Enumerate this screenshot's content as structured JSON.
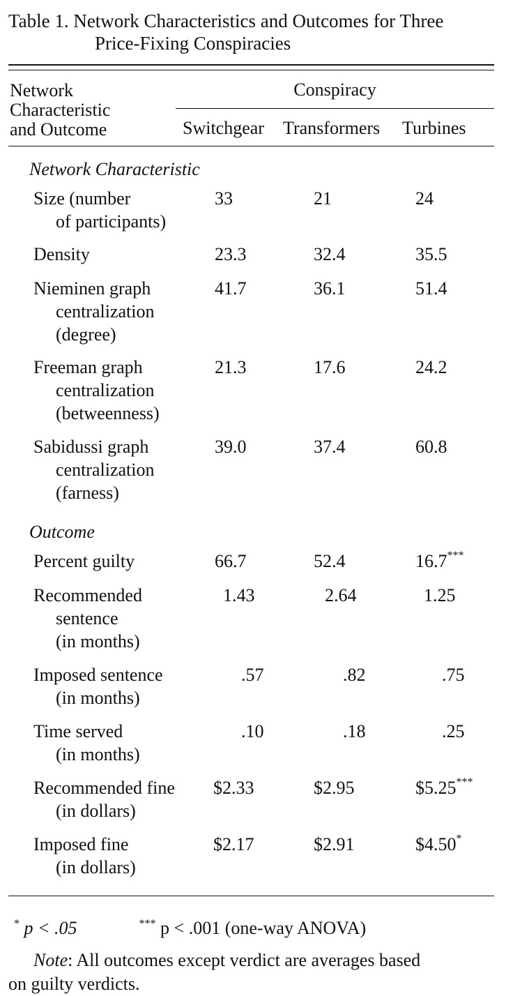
{
  "caption": {
    "line1": "Table 1. Network Characteristics and Outcomes for Three",
    "line2": "Price-Fixing Conspiracies"
  },
  "header": {
    "row_label": [
      "Network",
      "Characteristic",
      "and Outcome"
    ],
    "spanner": "Conspiracy",
    "columns": [
      "Switchgear",
      "Transformers",
      "Turbines"
    ]
  },
  "sections": [
    {
      "title": "Network Characteristic",
      "rows": [
        {
          "label": [
            "Size (number",
            "of participants)"
          ],
          "values": [
            "33",
            "21",
            "24"
          ],
          "marks": [
            "",
            "",
            ""
          ]
        },
        {
          "label": [
            "Density"
          ],
          "values": [
            "23.3",
            "32.4",
            "35.5"
          ],
          "marks": [
            "",
            "",
            ""
          ]
        },
        {
          "label": [
            "Nieminen graph",
            "centralization",
            "(degree)"
          ],
          "values": [
            "41.7",
            "36.1",
            "51.4"
          ],
          "marks": [
            "",
            "",
            ""
          ]
        },
        {
          "label": [
            "Freeman graph",
            "centralization",
            "(betweenness)"
          ],
          "values": [
            "21.3",
            "17.6",
            "24.2"
          ],
          "marks": [
            "",
            "",
            ""
          ]
        },
        {
          "label": [
            "Sabidussi graph",
            "centralization",
            "(farness)"
          ],
          "values": [
            "39.0",
            "37.4",
            "60.8"
          ],
          "marks": [
            "",
            "",
            ""
          ]
        }
      ]
    },
    {
      "title": "Outcome",
      "rows": [
        {
          "label": [
            "Percent guilty"
          ],
          "values": [
            "66.7",
            "52.4",
            "16.7"
          ],
          "marks": [
            "",
            "",
            "***"
          ]
        },
        {
          "label": [
            "Recommended",
            "sentence",
            "(in months)"
          ],
          "values": [
            "1.43",
            "2.64",
            "1.25"
          ],
          "marks": [
            "",
            "",
            ""
          ]
        },
        {
          "label": [
            "Imposed sentence",
            "(in months)"
          ],
          "values": [
            ".57",
            ".82",
            ".75"
          ],
          "marks": [
            "",
            "",
            ""
          ]
        },
        {
          "label": [
            "Time served",
            "(in months)"
          ],
          "values": [
            ".10",
            ".18",
            ".25"
          ],
          "marks": [
            "",
            "",
            ""
          ]
        },
        {
          "label": [
            "Recommended fine",
            "(in dollars)"
          ],
          "values": [
            "$2.33",
            "$2.95",
            "$5.25"
          ],
          "marks": [
            "",
            "",
            "***"
          ]
        },
        {
          "label": [
            "Imposed fine",
            "(in dollars)"
          ],
          "values": [
            "$2.17",
            "$2.91",
            "$4.50"
          ],
          "marks": [
            "",
            "",
            "*"
          ]
        }
      ]
    }
  ],
  "footnotes": {
    "sym1": "*",
    "text1": "p < .05",
    "sym2": "***",
    "text2": "p < .001 (one-way ANOVA)"
  },
  "note": {
    "label": "Note",
    "text_line1": ": All outcomes except verdict are averages based",
    "text_line2": "on guilty verdicts."
  }
}
